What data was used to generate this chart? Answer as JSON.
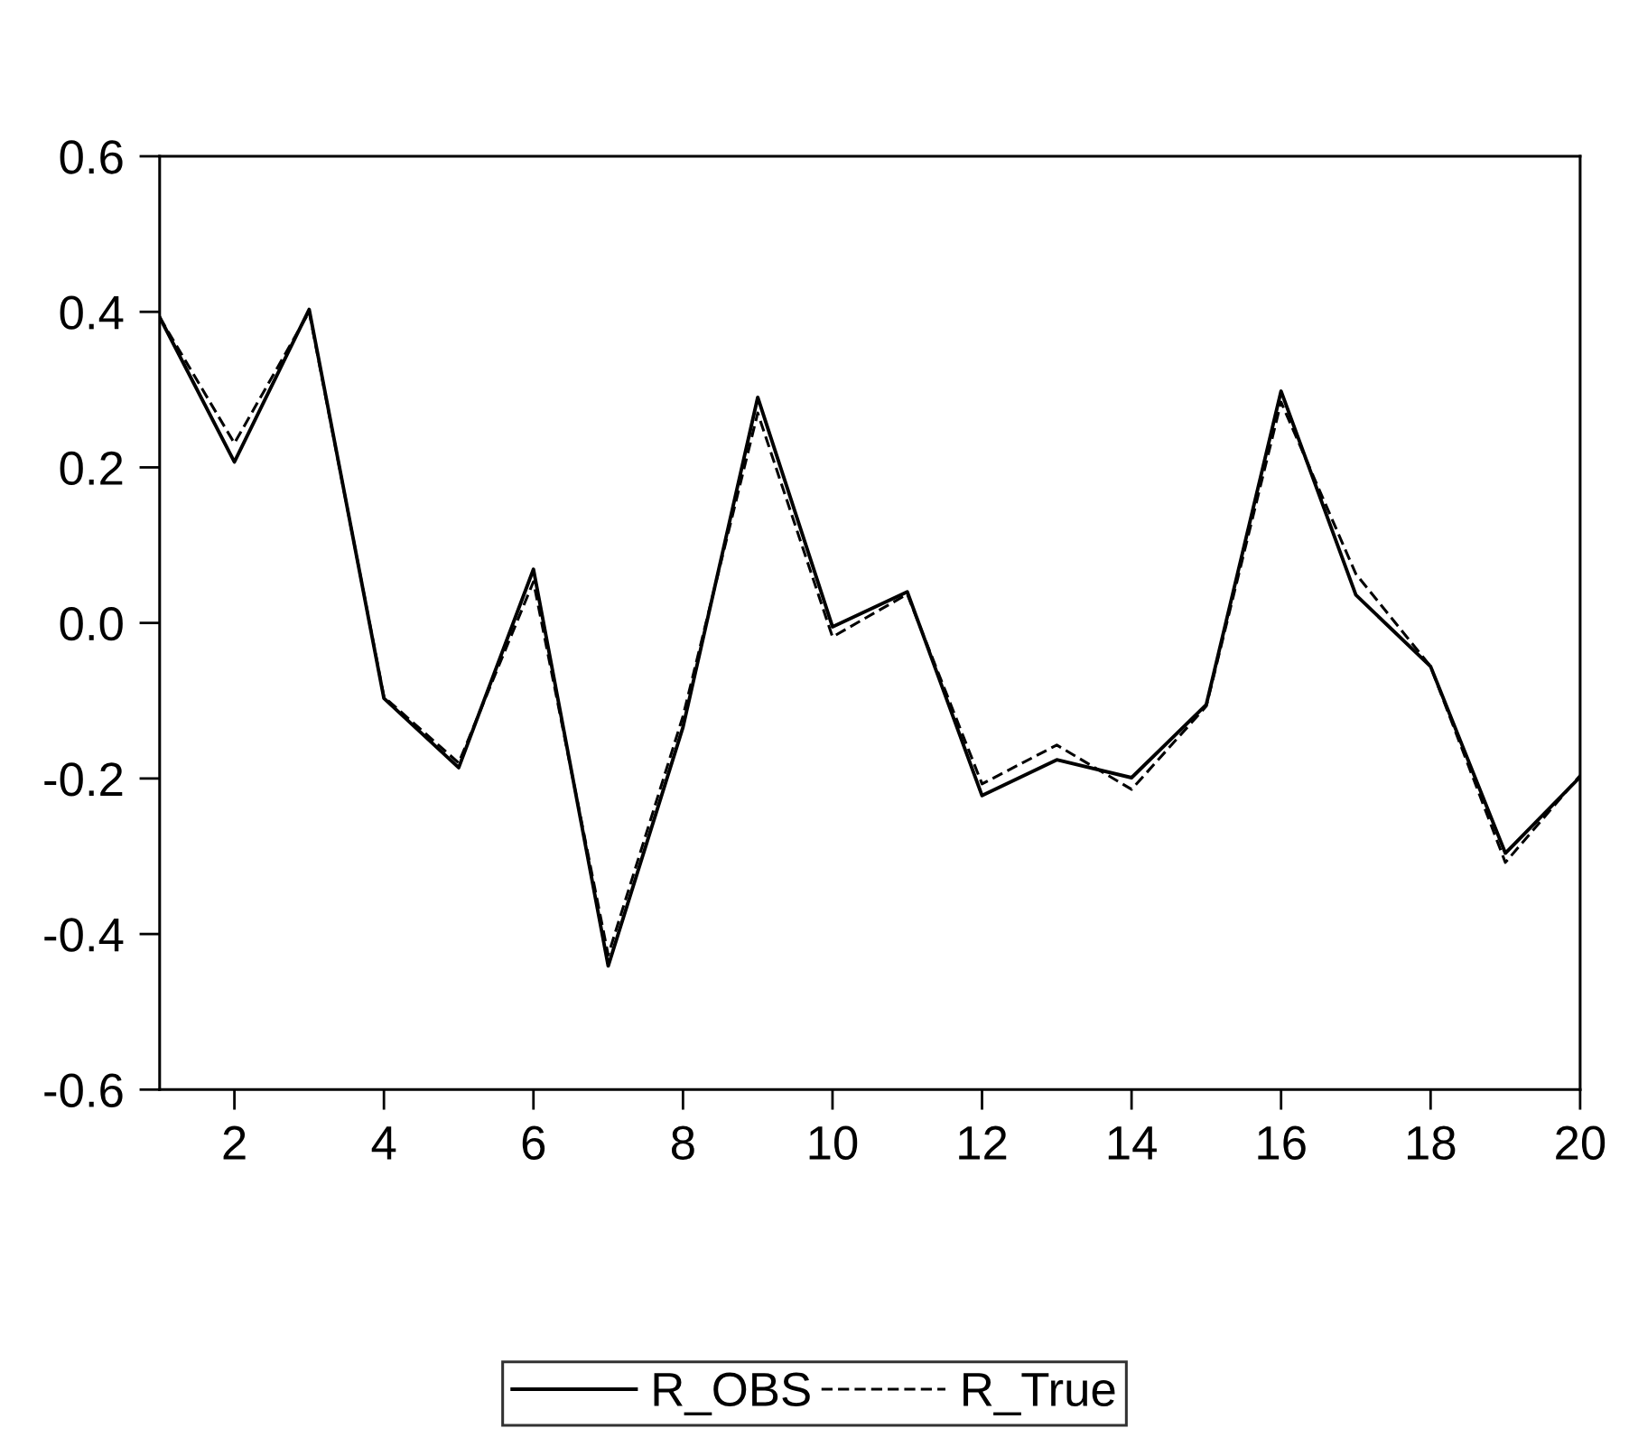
{
  "chart_data": {
    "type": "line",
    "x": [
      1,
      2,
      3,
      4,
      5,
      6,
      7,
      8,
      9,
      10,
      11,
      12,
      13,
      14,
      15,
      16,
      17,
      18,
      19,
      20
    ],
    "series": [
      {
        "name": "R_OBS",
        "color": "#000000",
        "line_style": "solid",
        "values": [
          0.393,
          0.207,
          0.403,
          -0.097,
          -0.186,
          0.069,
          -0.441,
          -0.134,
          0.29,
          -0.005,
          0.04,
          -0.222,
          -0.176,
          -0.199,
          -0.105,
          0.298,
          0.036,
          -0.056,
          -0.296,
          -0.198
        ]
      },
      {
        "name": "R_True",
        "color": "#000000",
        "line_style": "dashed",
        "values": [
          0.393,
          0.231,
          0.4,
          -0.095,
          -0.18,
          0.053,
          -0.427,
          -0.12,
          0.27,
          -0.018,
          0.037,
          -0.207,
          -0.157,
          -0.214,
          -0.107,
          0.284,
          0.063,
          -0.056,
          -0.308,
          -0.196
        ]
      }
    ],
    "xlim": [
      1,
      20
    ],
    "xticks": [
      2,
      4,
      6,
      8,
      10,
      12,
      14,
      16,
      18,
      20
    ],
    "ylim": [
      -0.6,
      0.6
    ],
    "yticks": [
      {
        "value": -0.6,
        "label": "-0.6"
      },
      {
        "value": -0.4,
        "label": "-0.4"
      },
      {
        "value": -0.2,
        "label": "-0.2"
      },
      {
        "value": 0,
        "label": "0.0"
      },
      {
        "value": 0.2,
        "label": "0.2"
      },
      {
        "value": 0.4,
        "label": "0.4"
      },
      {
        "value": 0.6,
        "label": "0.6"
      }
    ],
    "grid": false,
    "legend": "bottom",
    "marker": "none"
  }
}
